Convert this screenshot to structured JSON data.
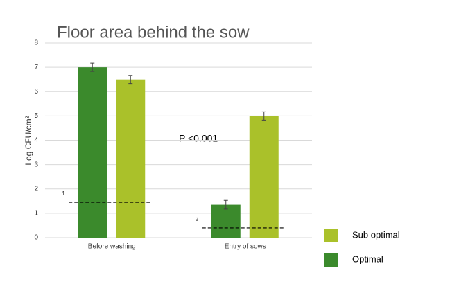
{
  "chart_data": {
    "type": "bar",
    "title": "Floor area behind the sow",
    "y_label": "Log CFU/cm²",
    "categories": [
      "Before washing",
      "Entry of sows"
    ],
    "series": [
      {
        "name": "Optimal",
        "color": "#3b8a2c",
        "values": [
          7.0,
          1.35
        ],
        "errors": [
          0.17,
          0.18
        ]
      },
      {
        "name": "Sub optimal",
        "color": "#aac12a",
        "values": [
          6.5,
          5.0
        ],
        "errors": [
          0.17,
          0.17
        ]
      }
    ],
    "reference_lines": [
      {
        "label": "1",
        "value": 1.45
      },
      {
        "label": "2",
        "value": 0.4
      }
    ],
    "annotation": "P <0.001",
    "ylim": [
      0,
      8
    ],
    "yticks": [
      0,
      1,
      2,
      3,
      4,
      5,
      6,
      7,
      8
    ],
    "grid": true
  }
}
